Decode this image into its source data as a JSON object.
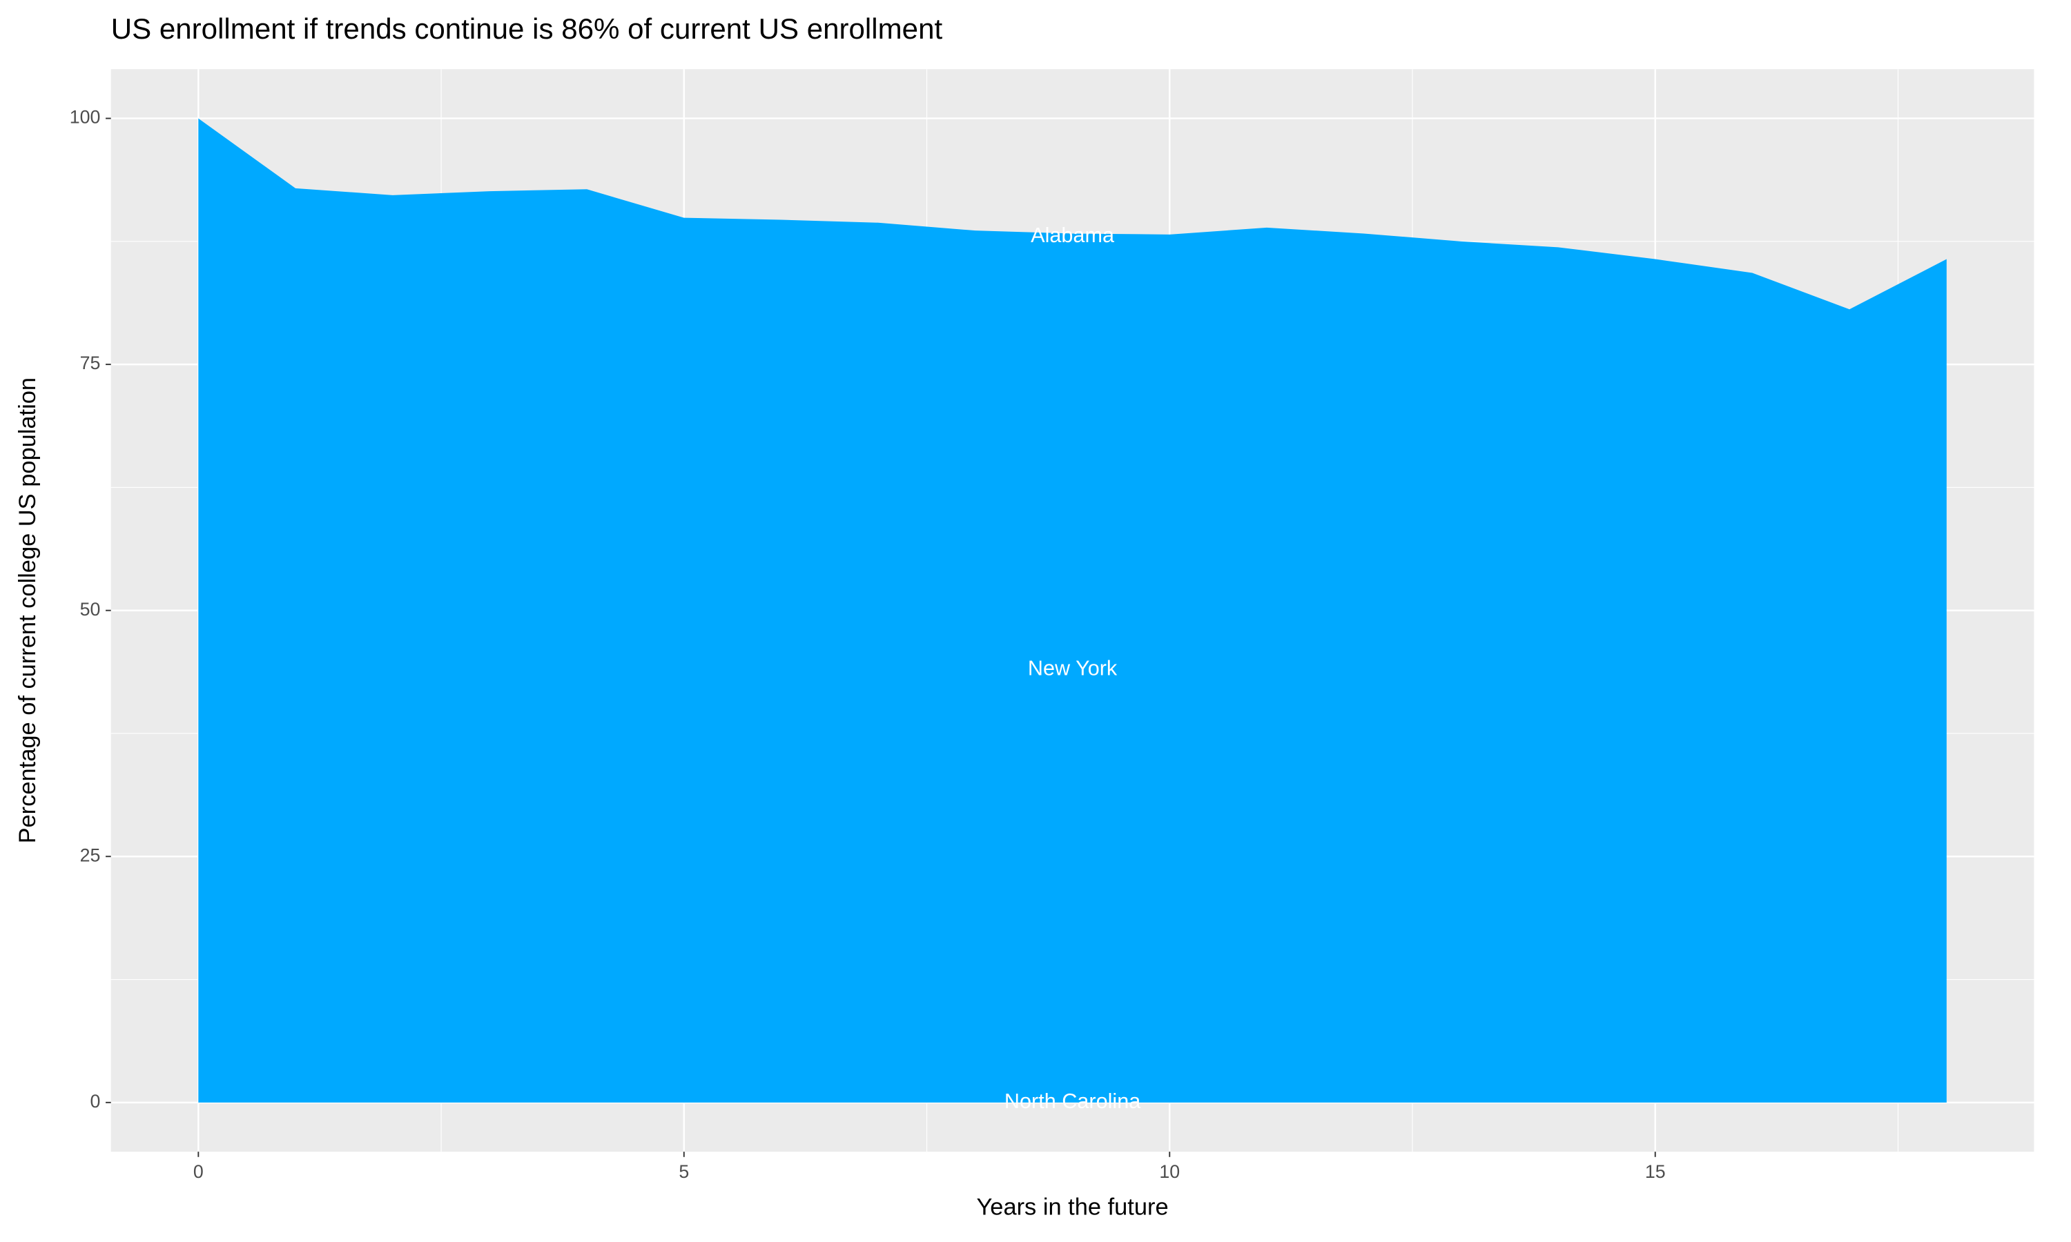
{
  "chart_data": {
    "type": "area",
    "title": "US enrollment if trends continue is 86% of current US enrollment",
    "x_label": "Years in the future",
    "y_label": "Percentage of current college US population",
    "x": [
      0,
      1,
      2,
      3,
      4,
      5,
      6,
      7,
      8,
      9,
      10,
      11,
      12,
      13,
      14,
      15,
      16,
      17,
      18
    ],
    "values": [
      100,
      92.9,
      92.2,
      92.6,
      92.8,
      89.9,
      89.7,
      89.4,
      88.6,
      88.3,
      88.2,
      88.9,
      88.3,
      87.5,
      86.9,
      85.7,
      84.3,
      80.6,
      85.7
    ],
    "color": "#00A9FF",
    "xlim": [
      -0.9,
      18.9
    ],
    "ylim": [
      -5,
      105
    ],
    "xticks": [
      0,
      5,
      10,
      15
    ],
    "yticks": [
      0,
      25,
      50,
      75,
      100
    ],
    "grid": true,
    "annotations": [
      {
        "text": "Alabama",
        "x": 9,
        "y": 88
      },
      {
        "text": "New York",
        "x": 9,
        "y": 44
      },
      {
        "text": "North Carolina",
        "x": 9,
        "y": 0
      }
    ]
  }
}
